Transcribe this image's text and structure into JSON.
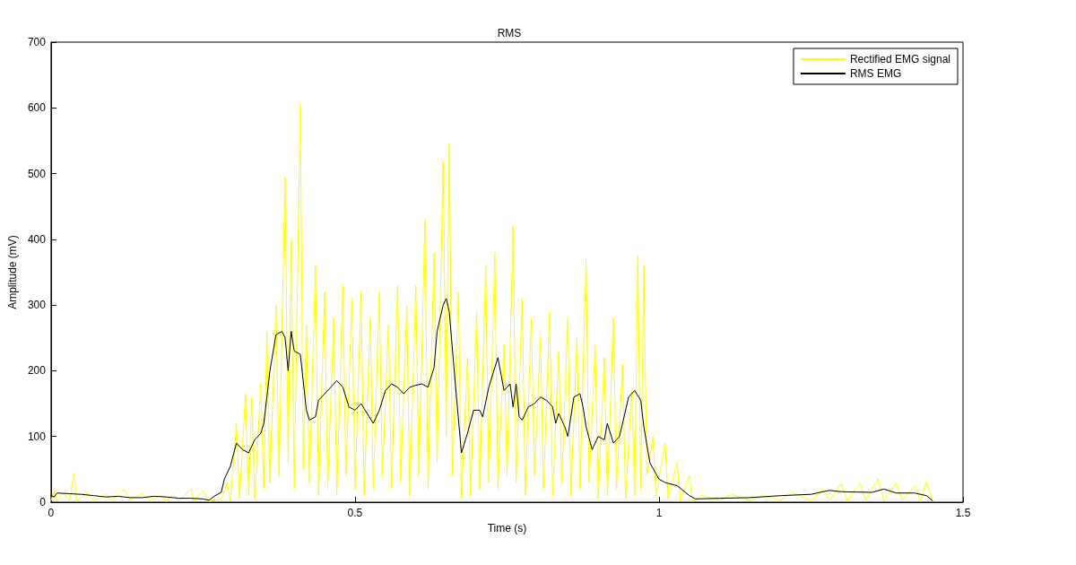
{
  "chart_data": {
    "type": "line",
    "title": "RMS",
    "xlabel": "Time (s)",
    "ylabel": "Amplitude (mV)",
    "xlim": [
      0,
      1.5
    ],
    "xticks": [
      0,
      0.5,
      1,
      1.5
    ],
    "ylim": [
      0,
      700
    ],
    "yticks": [
      0,
      100,
      200,
      300,
      400,
      500,
      600,
      700
    ],
    "grid": false,
    "legend": "top right",
    "marker": "none",
    "line_style": "solid",
    "series": [
      {
        "name": "Rectified EMG signal",
        "color": "#ffff00",
        "x": [
          0,
          0.005,
          0.01,
          0.02,
          0.03,
          0.038,
          0.042,
          0.06,
          0.07,
          0.09,
          0.1,
          0.12,
          0.13,
          0.15,
          0.16,
          0.18,
          0.19,
          0.2,
          0.21,
          0.23,
          0.235,
          0.25,
          0.26,
          0.28,
          0.29,
          0.295,
          0.305,
          0.31,
          0.32,
          0.325,
          0.33,
          0.335,
          0.345,
          0.35,
          0.355,
          0.36,
          0.37,
          0.375,
          0.385,
          0.39,
          0.395,
          0.4,
          0.41,
          0.415,
          0.42,
          0.425,
          0.435,
          0.44,
          0.45,
          0.455,
          0.465,
          0.47,
          0.48,
          0.485,
          0.495,
          0.5,
          0.51,
          0.515,
          0.525,
          0.53,
          0.54,
          0.545,
          0.555,
          0.56,
          0.57,
          0.575,
          0.585,
          0.59,
          0.6,
          0.605,
          0.615,
          0.62,
          0.63,
          0.635,
          0.645,
          0.65,
          0.655,
          0.66,
          0.67,
          0.675,
          0.685,
          0.69,
          0.7,
          0.705,
          0.715,
          0.72,
          0.73,
          0.735,
          0.745,
          0.75,
          0.76,
          0.765,
          0.775,
          0.78,
          0.79,
          0.795,
          0.805,
          0.81,
          0.82,
          0.825,
          0.835,
          0.84,
          0.85,
          0.855,
          0.865,
          0.87,
          0.88,
          0.885,
          0.895,
          0.9,
          0.91,
          0.915,
          0.925,
          0.93,
          0.94,
          0.945,
          0.955,
          0.96,
          0.965,
          0.97,
          0.975,
          0.98,
          0.99,
          0.995,
          1.01,
          1.015,
          1.03,
          1.035,
          1.05,
          1.055,
          1.07,
          1.1,
          1.12,
          1.15,
          1.17,
          1.2,
          1.22,
          1.25,
          1.27,
          1.28,
          1.3,
          1.31,
          1.33,
          1.34,
          1.36,
          1.37,
          1.39,
          1.4,
          1.42,
          1.43,
          1.44,
          1.45
        ],
        "values": [
          2,
          18,
          3,
          15,
          2,
          45,
          1,
          14,
          2,
          12,
          2,
          20,
          3,
          14,
          2,
          10,
          1,
          12,
          2,
          20,
          1,
          18,
          1,
          5,
          30,
          2,
          120,
          5,
          165,
          10,
          160,
          5,
          180,
          20,
          260,
          30,
          300,
          40,
          495,
          60,
          400,
          20,
          605,
          50,
          270,
          30,
          360,
          10,
          320,
          20,
          280,
          10,
          330,
          40,
          310,
          20,
          320,
          10,
          280,
          20,
          320,
          40,
          270,
          20,
          330,
          30,
          300,
          10,
          330,
          40,
          430,
          20,
          380,
          60,
          520,
          100,
          545,
          40,
          320,
          5,
          220,
          10,
          290,
          20,
          360,
          30,
          380,
          20,
          240,
          40,
          420,
          30,
          310,
          10,
          280,
          40,
          250,
          20,
          290,
          10,
          230,
          30,
          280,
          10,
          250,
          20,
          370,
          30,
          240,
          5,
          220,
          10,
          280,
          20,
          210,
          5,
          170,
          10,
          375,
          20,
          360,
          40,
          100,
          10,
          90,
          5,
          60,
          2,
          40,
          1,
          10,
          3,
          12,
          2,
          10,
          3,
          15,
          2,
          20,
          3,
          28,
          2,
          30,
          3,
          35,
          2,
          30,
          3,
          25,
          1,
          32,
          0
        ]
      },
      {
        "name": "RMS EMG",
        "color": "#000000",
        "x": [
          0,
          0.005,
          0.01,
          0.03,
          0.05,
          0.07,
          0.09,
          0.11,
          0.13,
          0.15,
          0.17,
          0.19,
          0.21,
          0.23,
          0.25,
          0.26,
          0.27,
          0.28,
          0.285,
          0.295,
          0.305,
          0.315,
          0.325,
          0.335,
          0.345,
          0.35,
          0.36,
          0.37,
          0.38,
          0.385,
          0.39,
          0.395,
          0.4,
          0.41,
          0.42,
          0.425,
          0.435,
          0.44,
          0.45,
          0.46,
          0.47,
          0.48,
          0.49,
          0.5,
          0.51,
          0.52,
          0.53,
          0.54,
          0.55,
          0.56,
          0.57,
          0.58,
          0.59,
          0.6,
          0.61,
          0.62,
          0.63,
          0.635,
          0.645,
          0.65,
          0.655,
          0.665,
          0.675,
          0.685,
          0.695,
          0.705,
          0.71,
          0.72,
          0.73,
          0.735,
          0.745,
          0.755,
          0.76,
          0.765,
          0.77,
          0.775,
          0.785,
          0.795,
          0.805,
          0.815,
          0.825,
          0.83,
          0.835,
          0.845,
          0.85,
          0.86,
          0.87,
          0.875,
          0.88,
          0.89,
          0.9,
          0.91,
          0.915,
          0.925,
          0.935,
          0.95,
          0.96,
          0.97,
          0.975,
          0.985,
          1.0,
          1.01,
          1.03,
          1.05,
          1.06,
          1.1,
          1.15,
          1.2,
          1.25,
          1.28,
          1.3,
          1.35,
          1.37,
          1.39,
          1.42,
          1.44,
          1.45
        ],
        "values": [
          10,
          8,
          14,
          13,
          12,
          10,
          8,
          9,
          7,
          7,
          9,
          8,
          6,
          6,
          5,
          3,
          10,
          15,
          35,
          55,
          90,
          80,
          75,
          95,
          105,
          120,
          200,
          255,
          260,
          250,
          200,
          260,
          230,
          225,
          140,
          125,
          130,
          155,
          165,
          175,
          185,
          175,
          145,
          140,
          150,
          135,
          120,
          140,
          170,
          180,
          175,
          165,
          175,
          178,
          180,
          175,
          205,
          260,
          300,
          310,
          290,
          180,
          75,
          105,
          140,
          140,
          130,
          175,
          205,
          220,
          170,
          180,
          145,
          180,
          130,
          125,
          145,
          150,
          160,
          155,
          145,
          120,
          135,
          115,
          100,
          160,
          165,
          145,
          115,
          80,
          100,
          95,
          120,
          90,
          100,
          160,
          170,
          155,
          115,
          60,
          35,
          30,
          25,
          10,
          5,
          6,
          7,
          10,
          12,
          18,
          16,
          15,
          20,
          14,
          14,
          10,
          2
        ]
      }
    ]
  }
}
